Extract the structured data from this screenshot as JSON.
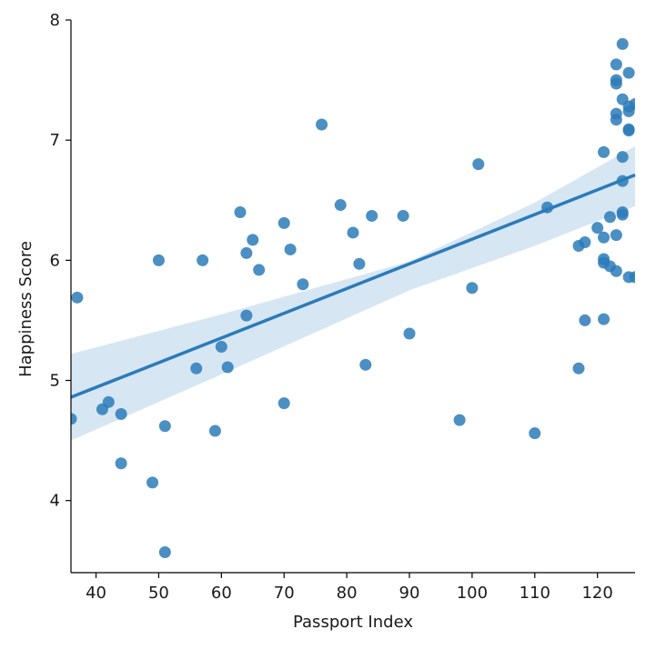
{
  "chart_data": {
    "type": "scatter",
    "title": "",
    "xlabel": "Passport Index",
    "ylabel": "Happiness Score",
    "xlim": [
      36,
      126
    ],
    "ylim": [
      3.4,
      8.0
    ],
    "xticks": [
      40,
      50,
      60,
      70,
      80,
      90,
      100,
      110,
      120
    ],
    "yticks": [
      4,
      5,
      6,
      7,
      8
    ],
    "grid": false,
    "colors": {
      "points": "#2b7bb9",
      "line": "#2b7bb9",
      "band": "#c9ddef"
    },
    "series": [
      {
        "name": "countries",
        "points": [
          [
            36,
            4.68
          ],
          [
            37,
            5.69
          ],
          [
            41,
            4.76
          ],
          [
            42,
            4.82
          ],
          [
            44,
            4.72
          ],
          [
            44,
            4.31
          ],
          [
            49,
            4.15
          ],
          [
            50,
            6.0
          ],
          [
            51,
            4.62
          ],
          [
            51,
            3.57
          ],
          [
            56,
            5.1
          ],
          [
            57,
            6.0
          ],
          [
            59,
            4.58
          ],
          [
            60,
            5.28
          ],
          [
            61,
            5.11
          ],
          [
            63,
            6.4
          ],
          [
            64,
            6.06
          ],
          [
            64,
            5.54
          ],
          [
            65,
            6.17
          ],
          [
            66,
            5.92
          ],
          [
            70,
            6.31
          ],
          [
            70,
            4.81
          ],
          [
            71,
            6.09
          ],
          [
            73,
            5.8
          ],
          [
            76,
            7.13
          ],
          [
            79,
            6.46
          ],
          [
            81,
            6.23
          ],
          [
            82,
            5.97
          ],
          [
            83,
            5.13
          ],
          [
            84,
            6.37
          ],
          [
            89,
            6.37
          ],
          [
            90,
            5.39
          ],
          [
            98,
            4.67
          ],
          [
            100,
            5.77
          ],
          [
            101,
            6.8
          ],
          [
            110,
            4.56
          ],
          [
            112,
            6.44
          ],
          [
            117,
            6.12
          ],
          [
            117,
            5.1
          ],
          [
            118,
            6.15
          ],
          [
            118,
            5.5
          ],
          [
            120,
            6.27
          ],
          [
            121,
            6.9
          ],
          [
            121,
            6.19
          ],
          [
            121,
            6.01
          ],
          [
            121,
            5.98
          ],
          [
            121,
            5.51
          ],
          [
            122,
            6.36
          ],
          [
            122,
            5.95
          ],
          [
            123,
            7.63
          ],
          [
            123,
            7.5
          ],
          [
            123,
            7.47
          ],
          [
            123,
            7.22
          ],
          [
            123,
            7.17
          ],
          [
            123,
            6.21
          ],
          [
            123,
            5.91
          ],
          [
            124,
            7.8
          ],
          [
            124,
            7.34
          ],
          [
            124,
            6.86
          ],
          [
            124,
            6.66
          ],
          [
            124,
            6.4
          ],
          [
            124,
            6.38
          ],
          [
            125,
            7.56
          ],
          [
            125,
            7.28
          ],
          [
            125,
            7.24
          ],
          [
            125,
            7.09
          ],
          [
            125,
            7.08
          ],
          [
            125,
            5.86
          ],
          [
            126,
            7.3
          ],
          [
            126,
            5.86
          ]
        ]
      }
    ],
    "regression": {
      "x_start": 36,
      "y_start": 4.86,
      "x_end": 126,
      "y_end": 6.71
    },
    "confidence_band": {
      "x": [
        36,
        60,
        90,
        110,
        126
      ],
      "lower": [
        4.5,
        5.05,
        5.75,
        6.12,
        6.45
      ],
      "upper": [
        5.22,
        5.55,
        5.99,
        6.48,
        6.95
      ]
    }
  }
}
